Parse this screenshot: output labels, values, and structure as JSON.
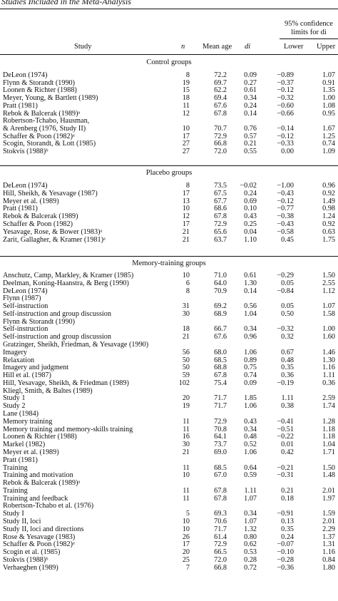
{
  "title": "Studies Included in the Meta-Analysis",
  "columns": {
    "study": "Study",
    "n": "n",
    "mean_age": "Mean age",
    "d": "di",
    "ci_header_line1": "95% confidence",
    "ci_header_line2": "limits for di",
    "lower": "Lower",
    "upper": "Upper"
  },
  "groups": [
    {
      "title": "Control groups",
      "rows": [
        {
          "study": "DeLeon (1974)",
          "n": "8",
          "age": "72.2",
          "d": "0.09",
          "lo": "−0.89",
          "up": "1.07"
        },
        {
          "study": "Flynn & Storandt (1990)",
          "n": "19",
          "age": "69.7",
          "d": "0.27",
          "lo": "−0.37",
          "up": "0.91"
        },
        {
          "study": "Loonen & Richter (1988)",
          "n": "15",
          "age": "62.2",
          "d": "0.61",
          "lo": "−0.12",
          "up": "1.35"
        },
        {
          "study": "Meyer, Young, & Bartlett (1989)",
          "n": "18",
          "age": "69.4",
          "d": "0.34",
          "lo": "−0.32",
          "up": "1.00"
        },
        {
          "study": "Pratt (1981)",
          "n": "11",
          "age": "67.6",
          "d": "0.24",
          "lo": "−0.60",
          "up": "1.08"
        },
        {
          "study": "Rebok & Balcerak (1989)ᵃ",
          "n": "12",
          "age": "67.8",
          "d": "0.14",
          "lo": "−0.66",
          "up": "0.95"
        },
        {
          "study": "Robertson-Tchabo, Hausman,",
          "n": "",
          "age": "",
          "d": "",
          "lo": "",
          "up": ""
        },
        {
          "study": "    & Arenberg (1976, Study II)",
          "n": "10",
          "age": "70.7",
          "d": "0.76",
          "lo": "−0.14",
          "up": "1.67"
        },
        {
          "study": "Schaffer & Poon (1982)ᵃ",
          "n": "17",
          "age": "72.9",
          "d": "0.57",
          "lo": "−0.12",
          "up": "1.25"
        },
        {
          "study": "Scogin, Storandt, & Lott (1985)",
          "n": "27",
          "age": "66.8",
          "d": "0.21",
          "lo": "−0.33",
          "up": "0.74"
        },
        {
          "study": "Stokvis (1988)ᵇ",
          "n": "27",
          "age": "72.0",
          "d": "0.55",
          "lo": "0.00",
          "up": "1.09"
        }
      ]
    },
    {
      "title": "Placebo groups",
      "rows": [
        {
          "study": "DeLeon (1974)",
          "n": "8",
          "age": "73.5",
          "d": "−0.02",
          "lo": "−1.00",
          "up": "0.96"
        },
        {
          "study": "Hill, Sheikh, & Yesavage (1987)",
          "n": "17",
          "age": "67.5",
          "d": "0.24",
          "lo": "−0.43",
          "up": "0.92"
        },
        {
          "study": "Meyer et al. (1989)",
          "n": "13",
          "age": "67.7",
          "d": "0.69",
          "lo": "−0.12",
          "up": "1.49"
        },
        {
          "study": "Pratt (1981)",
          "n": "10",
          "age": "68.6",
          "d": "0.10",
          "lo": "−0.77",
          "up": "0.98"
        },
        {
          "study": "Rebok & Balcerak (1989)",
          "n": "12",
          "age": "67.8",
          "d": "0.43",
          "lo": "−0.38",
          "up": "1.24"
        },
        {
          "study": "Schaffer & Poon (1982)",
          "n": "17",
          "age": "72.9",
          "d": "0.25",
          "lo": "−0.43",
          "up": "0.92"
        },
        {
          "study": "Yesavage, Rose, & Bower (1983)ᵃ",
          "n": "21",
          "age": "65.6",
          "d": "0.04",
          "lo": "−0.58",
          "up": "0.63"
        },
        {
          "study": "Zarit, Gallagher, & Kramer (1981)ᵃ",
          "n": "21",
          "age": "63.7",
          "d": "1.10",
          "lo": "0.45",
          "up": "1.75"
        }
      ]
    },
    {
      "title": "Memory-training groups",
      "rows": [
        {
          "study": "Anschutz, Camp, Markley, & Kramer (1985)",
          "n": "10",
          "age": "71.0",
          "d": "0.61",
          "lo": "−0.29",
          "up": "1.50"
        },
        {
          "study": "Deelman, Koning-Haanstra, & Berg (1990)",
          "n": "6",
          "age": "64.0",
          "d": "1.30",
          "lo": "0.05",
          "up": "2.55"
        },
        {
          "study": "DeLeon (1974)",
          "n": "8",
          "age": "70.9",
          "d": "0.14",
          "lo": "−0.84",
          "up": "1.12"
        },
        {
          "study": "Flynn (1987)",
          "n": "",
          "age": "",
          "d": "",
          "lo": "",
          "up": ""
        },
        {
          "study": "    Self-instruction",
          "n": "31",
          "age": "69.2",
          "d": "0.56",
          "lo": "0.05",
          "up": "1.07"
        },
        {
          "study": "    Self-instruction and group discussion",
          "n": "30",
          "age": "68.9",
          "d": "1.04",
          "lo": "0.50",
          "up": "1.58"
        },
        {
          "study": "Flynn & Storandt (1990)",
          "n": "",
          "age": "",
          "d": "",
          "lo": "",
          "up": ""
        },
        {
          "study": "    Self-instruction",
          "n": "18",
          "age": "66.7",
          "d": "0.34",
          "lo": "−0.32",
          "up": "1.00"
        },
        {
          "study": "    Self-instruction and group discussion",
          "n": "21",
          "age": "67.6",
          "d": "0.96",
          "lo": "0.32",
          "up": "1.60"
        },
        {
          "study": "Gratzinger, Sheikh, Friedman, & Yesavage (1990)",
          "n": "",
          "age": "",
          "d": "",
          "lo": "",
          "up": ""
        },
        {
          "study": "    Imagery",
          "n": "56",
          "age": "68.0",
          "d": "1.06",
          "lo": "0.67",
          "up": "1.46"
        },
        {
          "study": "    Relaxation",
          "n": "50",
          "age": "68.5",
          "d": "0.89",
          "lo": "0.48",
          "up": "1.30"
        },
        {
          "study": "    Imagery and judgment",
          "n": "50",
          "age": "68.8",
          "d": "0.75",
          "lo": "0.35",
          "up": "1.16"
        },
        {
          "study": "Hill et al. (1987)",
          "n": "59",
          "age": "67.8",
          "d": "0.74",
          "lo": "0.36",
          "up": "1.11"
        },
        {
          "study": "Hill, Yesavage, Sheikh, & Friedman (1989)",
          "n": "102",
          "age": "75.4",
          "d": "0.09",
          "lo": "−0.19",
          "up": "0.36"
        },
        {
          "study": "Kliegl, Smith, & Baltes (1989)",
          "n": "",
          "age": "",
          "d": "",
          "lo": "",
          "up": ""
        },
        {
          "study": "    Study 1",
          "n": "20",
          "age": "71.7",
          "d": "1.85",
          "lo": "1.11",
          "up": "2.59"
        },
        {
          "study": "    Study 2",
          "n": "19",
          "age": "71.7",
          "d": "1.06",
          "lo": "0.38",
          "up": "1.74"
        },
        {
          "study": "Lane (1984)",
          "n": "",
          "age": "",
          "d": "",
          "lo": "",
          "up": ""
        },
        {
          "study": "    Memory training",
          "n": "11",
          "age": "72.9",
          "d": "0.43",
          "lo": "−0.41",
          "up": "1.28"
        },
        {
          "study": "    Memory training and memory-skills training",
          "n": "11",
          "age": "70.8",
          "d": "0.34",
          "lo": "−0.51",
          "up": "1.18"
        },
        {
          "study": "Loonen & Richter (1988)",
          "n": "16",
          "age": "64.1",
          "d": "0.48",
          "lo": "−0.22",
          "up": "1.18"
        },
        {
          "study": "Markel (1982)",
          "n": "30",
          "age": "73.7",
          "d": "0.52",
          "lo": "0.01",
          "up": "1.04"
        },
        {
          "study": "Meyer et al. (1989)",
          "n": "21",
          "age": "69.0",
          "d": "1.06",
          "lo": "0.42",
          "up": "1.71"
        },
        {
          "study": "Pratt (1981)",
          "n": "",
          "age": "",
          "d": "",
          "lo": "",
          "up": ""
        },
        {
          "study": "    Training",
          "n": "11",
          "age": "68.5",
          "d": "0.64",
          "lo": "−0.21",
          "up": "1.50"
        },
        {
          "study": "    Training and motivation",
          "n": "10",
          "age": "67.0",
          "d": "0.59",
          "lo": "−0.31",
          "up": "1.48"
        },
        {
          "study": "Rebok & Balcerak (1989)ᵃ",
          "n": "",
          "age": "",
          "d": "",
          "lo": "",
          "up": ""
        },
        {
          "study": "    Training",
          "n": "11",
          "age": "67.8",
          "d": "1.11",
          "lo": "0.21",
          "up": "2.01"
        },
        {
          "study": "    Training and feedback",
          "n": "11",
          "age": "67.8",
          "d": "1.07",
          "lo": "0.18",
          "up": "1.97"
        },
        {
          "study": "Robertson-Tchabo et al. (1976)",
          "n": "",
          "age": "",
          "d": "",
          "lo": "",
          "up": ""
        },
        {
          "study": "    Study I",
          "n": "5",
          "age": "69.3",
          "d": "0.34",
          "lo": "−0.91",
          "up": "1.59"
        },
        {
          "study": "    Study II, loci",
          "n": "10",
          "age": "70.6",
          "d": "1.07",
          "lo": "0.13",
          "up": "2.01"
        },
        {
          "study": "    Study II, loci and directions",
          "n": "10",
          "age": "71.7",
          "d": "1.32",
          "lo": "0.35",
          "up": "2.29"
        },
        {
          "study": "Rose & Yesavage (1983)",
          "n": "26",
          "age": "61.4",
          "d": "0.80",
          "lo": "0.24",
          "up": "1.37"
        },
        {
          "study": "Schaffer & Poon (1982)ᵃ",
          "n": "17",
          "age": "72.9",
          "d": "0.62",
          "lo": "−0.07",
          "up": "1.31"
        },
        {
          "study": "Scogin et al. (1985)",
          "n": "20",
          "age": "66.5",
          "d": "0.53",
          "lo": "−0.10",
          "up": "1.16"
        },
        {
          "study": "Stokvis (1988)ᵇ",
          "n": "25",
          "age": "72.0",
          "d": "0.28",
          "lo": "−0.28",
          "up": "0.84"
        },
        {
          "study": "Verhaeghen (1989)",
          "n": "7",
          "age": "66.8",
          "d": "0.72",
          "lo": "−0.36",
          "up": "1.80"
        }
      ]
    }
  ]
}
